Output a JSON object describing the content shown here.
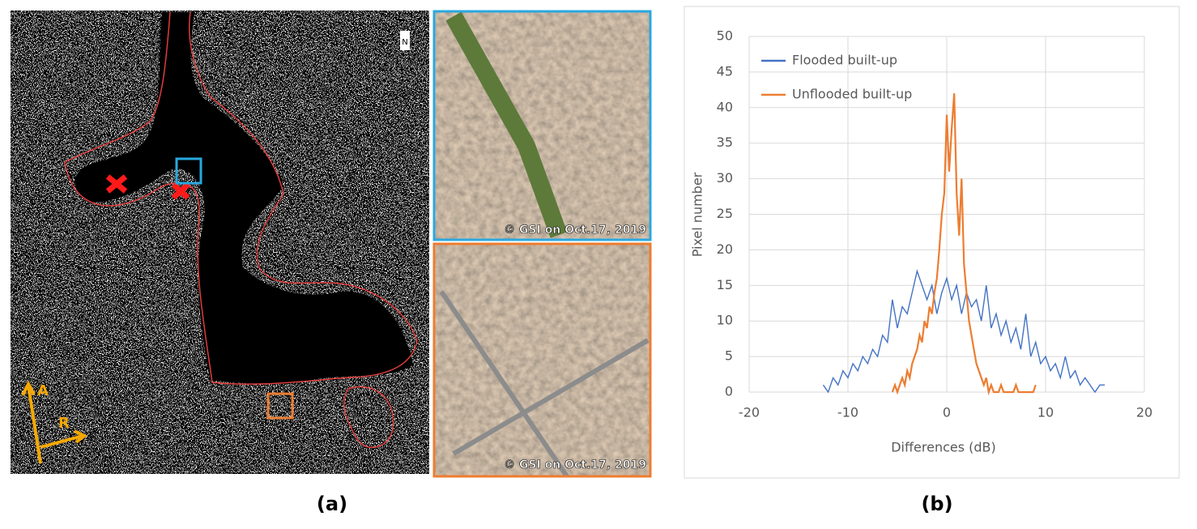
{
  "figure": {
    "panel_a": {
      "label": "(a)",
      "azimuth": "A",
      "range": "R",
      "north": "N",
      "credits": [
        "© GSI on Oct.17, 2019",
        "© GSI on Oct.17, 2019"
      ]
    },
    "panel_b": {
      "label": "(b)"
    }
  },
  "chart_data": {
    "type": "line",
    "xlabel": "Differences (dB)",
    "ylabel": "Pixel number",
    "xlim": [
      -20,
      20
    ],
    "xticks": [
      -20,
      -10,
      0,
      10,
      20
    ],
    "ylim": [
      0,
      50
    ],
    "yticks": [
      0,
      5,
      10,
      15,
      20,
      25,
      30,
      35,
      40,
      45,
      50
    ],
    "grid": true,
    "legend": "upper left",
    "series": [
      {
        "name": "Flooded built-up",
        "color": "#4472c4",
        "x": [
          -12.5,
          -12,
          -11.5,
          -11,
          -10.5,
          -10,
          -9.5,
          -9,
          -8.5,
          -8,
          -7.5,
          -7,
          -6.5,
          -6,
          -5.5,
          -5,
          -4.5,
          -4,
          -3.5,
          -3,
          -2.5,
          -2,
          -1.5,
          -1,
          -0.5,
          0,
          0.5,
          1,
          1.5,
          2,
          2.5,
          3,
          3.5,
          4,
          4.5,
          5,
          5.5,
          6,
          6.5,
          7,
          7.5,
          8,
          8.5,
          9,
          9.5,
          10,
          10.5,
          11,
          11.5,
          12,
          12.5,
          13,
          13.5,
          14,
          14.5,
          15,
          15.5,
          16
        ],
        "values": [
          1,
          0,
          2,
          1,
          3,
          2,
          4,
          3,
          5,
          4,
          6,
          5,
          8,
          7,
          13,
          9,
          12,
          11,
          14,
          17,
          15,
          13,
          15,
          11,
          14,
          16,
          13,
          15,
          11,
          14,
          12,
          13,
          10,
          15,
          9,
          11,
          8,
          10,
          7,
          9,
          6,
          11,
          5,
          7,
          4,
          5,
          3,
          4,
          2,
          5,
          2,
          3,
          1,
          2,
          1,
          0,
          1,
          1
        ]
      },
      {
        "name": "Unflooded built-up",
        "color": "#ed7d31",
        "x": [
          -5.5,
          -5.25,
          -5,
          -4.75,
          -4.5,
          -4.25,
          -4,
          -3.75,
          -3.5,
          -3.25,
          -3,
          -2.75,
          -2.5,
          -2.25,
          -2,
          -1.75,
          -1.5,
          -1.25,
          -1,
          -0.75,
          -0.5,
          -0.25,
          0,
          0.25,
          0.5,
          0.75,
          1,
          1.25,
          1.5,
          1.75,
          2,
          2.25,
          2.5,
          2.75,
          3,
          3.25,
          3.5,
          3.75,
          4,
          4.25,
          4.5,
          4.75,
          5,
          5.25,
          5.5,
          5.75,
          6,
          6.25,
          6.5,
          6.75,
          7,
          7.25,
          7.5,
          7.75,
          8,
          8.25,
          8.5,
          8.75,
          9
        ],
        "values": [
          0,
          1,
          0,
          1,
          2,
          1,
          3,
          2,
          4,
          5,
          6,
          8,
          7,
          10,
          9,
          12,
          11,
          14,
          16,
          20,
          25,
          28,
          39,
          31,
          37,
          42,
          28,
          22,
          30,
          18,
          14,
          10,
          8,
          6,
          4,
          3,
          2,
          1,
          2,
          0,
          1,
          0,
          0,
          0,
          1,
          0,
          0,
          0,
          0,
          0,
          1,
          0,
          0,
          0,
          0,
          0,
          0,
          0,
          1
        ]
      }
    ]
  }
}
